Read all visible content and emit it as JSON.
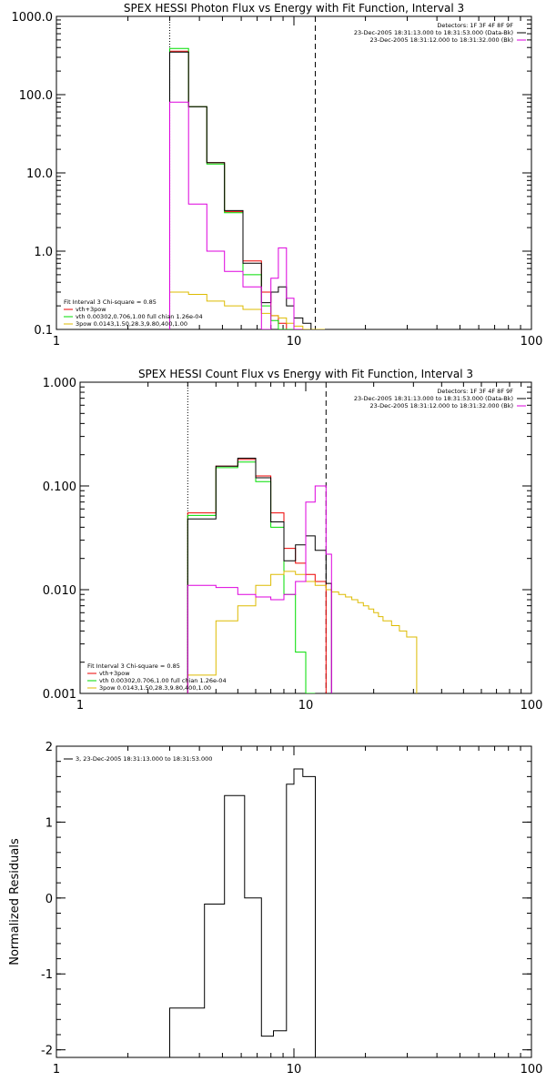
{
  "chart_data": [
    {
      "type": "line",
      "title": "SPEX HESSI Photon Flux vs Energy with Fit Function, Interval 3",
      "xlabel": "",
      "ylabel": "",
      "xscale": "log",
      "yscale": "log",
      "xlim": [
        1,
        100
      ],
      "ylim": [
        0.1,
        1000
      ],
      "x_ticks": [
        {
          "v": 1,
          "label": "1"
        },
        {
          "v": 10,
          "label": "10"
        },
        {
          "v": 100,
          "label": "100"
        }
      ],
      "y_ticks": [
        {
          "v": 0.1,
          "label": "0.1"
        },
        {
          "v": 1,
          "label": "1.0"
        },
        {
          "v": 10,
          "label": "10.0"
        },
        {
          "v": 100,
          "label": "100.0"
        },
        {
          "v": 1000,
          "label": "1000.0"
        }
      ],
      "vlines": [
        {
          "x": 3.0,
          "style": "dotted"
        },
        {
          "x": 12.3,
          "style": "dashed"
        }
      ],
      "legend_topright": [
        {
          "text": "Detectors: 1F 3F 4F 8F 9F",
          "color": ""
        },
        {
          "text": "23-Dec-2005 18:31:13.000 to 18:31:53.000 (Data-Bk)",
          "color": "#000000"
        },
        {
          "text": "23-Dec-2005 18:31:12.000 to 18:31:32.000 (Bk)",
          "color": "#dd00dd"
        }
      ],
      "legend_bottomleft": [
        {
          "text": "Fit Interval 3   Chi-square = 0.85",
          "color": ""
        },
        {
          "text": "vth+3pow",
          "color": "#ee0000"
        },
        {
          "text": "vth 0.00302,0.706,1.00  full chian 1.26e-04",
          "color": "#00dd00"
        },
        {
          "text": "3pow 0.0143,1.50,28.3,9.80,400,1.00",
          "color": "#ddbb00"
        }
      ],
      "edges": [
        3.0,
        3.6,
        4.3,
        5.1,
        6.1,
        7.3,
        8.0,
        8.6,
        9.3,
        10.0,
        10.9,
        11.8,
        12.6,
        13.5
      ],
      "series": [
        {
          "name": "vth+3pow",
          "color": "#ee0000",
          "values": [
            360,
            70,
            13.5,
            3.2,
            0.75,
            0.3,
            0.15,
            0.12,
            0.1,
            0.1
          ]
        },
        {
          "name": "vth",
          "color": "#00dd00",
          "values": [
            390,
            70,
            13,
            3.1,
            0.5,
            0.2,
            0.13,
            0.1,
            0.1
          ]
        },
        {
          "name": "3pow",
          "color": "#ddbb00",
          "values": [
            0.3,
            0.28,
            0.23,
            0.2,
            0.18,
            0.16,
            0.15,
            0.14,
            0.12,
            0.11,
            0.1,
            0.1,
            0.1
          ]
        },
        {
          "name": "Data-Bk",
          "color": "#000000",
          "values": [
            350,
            70,
            13.5,
            3.3,
            0.7,
            0.22,
            0.3,
            0.35,
            0.2,
            0.14,
            0.12
          ]
        },
        {
          "name": "Bk",
          "color": "#dd00dd",
          "values": [
            80,
            4,
            1.0,
            0.55,
            0.35,
            0.1,
            0.45,
            1.1,
            0.25,
            0.1
          ]
        }
      ]
    },
    {
      "type": "line",
      "title": "SPEX HESSI Count Flux vs Energy with Fit Function, Interval 3",
      "xlabel": "",
      "ylabel": "",
      "xscale": "log",
      "yscale": "log",
      "xlim": [
        1,
        100
      ],
      "ylim": [
        0.001,
        1
      ],
      "x_ticks": [
        {
          "v": 1,
          "label": "1"
        },
        {
          "v": 10,
          "label": "10"
        },
        {
          "v": 100,
          "label": "100"
        }
      ],
      "y_ticks": [
        {
          "v": 0.001,
          "label": "0.001"
        },
        {
          "v": 0.01,
          "label": "0.010"
        },
        {
          "v": 0.1,
          "label": "0.100"
        },
        {
          "v": 1,
          "label": "1.000"
        }
      ],
      "vlines": [
        {
          "x": 3.0,
          "style": "dotted"
        },
        {
          "x": 12.3,
          "style": "dashed"
        }
      ],
      "legend_topright": [
        {
          "text": "Detectors: 1F 3F 4F 8F 9F",
          "color": ""
        },
        {
          "text": "23-Dec-2005 18:31:13.000 to 18:31:53.000 (Data-Bk)",
          "color": "#000000"
        },
        {
          "text": "23-Dec-2005 18:31:12.000 to 18:31:32.000 (Bk)",
          "color": "#dd00dd"
        }
      ],
      "legend_bottomleft": [
        {
          "text": "Fit Interval 3   Chi-square = 0.85",
          "color": ""
        },
        {
          "text": "vth+3pow",
          "color": "#ee0000"
        },
        {
          "text": "vth 0.00302,0.706,1.00  full chian 1.26e-04",
          "color": "#00dd00"
        },
        {
          "text": "3pow 0.0143,1.50,28.3,9.80,400,1.00",
          "color": "#ddbb00"
        }
      ],
      "edges": [
        3.0,
        4.0,
        5.0,
        6.0,
        7.0,
        8.0,
        9.0,
        10.0,
        11.0,
        12.3,
        13.0,
        14.0,
        15.0,
        16.0,
        17.0,
        18.0,
        19.0,
        20.0,
        21.0,
        22.0,
        24.0,
        26.0,
        28.0,
        31.0
      ],
      "series": [
        {
          "name": "vth+3pow",
          "color": "#ee0000",
          "values": [
            0.055,
            0.155,
            0.18,
            0.125,
            0.055,
            0.025,
            0.018,
            0.014,
            0.012
          ]
        },
        {
          "name": "vth",
          "color": "#00dd00",
          "values": [
            0.052,
            0.15,
            0.17,
            0.11,
            0.04,
            0.009,
            0.0025,
            0.001
          ]
        },
        {
          "name": "3pow",
          "color": "#ddbb00",
          "values": [
            0.0015,
            0.005,
            0.007,
            0.011,
            0.014,
            0.015,
            0.014,
            0.012,
            0.011,
            0.01,
            0.0095,
            0.009,
            0.0085,
            0.008,
            0.0075,
            0.007,
            0.0065,
            0.006,
            0.0055,
            0.005,
            0.0045,
            0.004,
            0.0035
          ]
        },
        {
          "name": "Data-Bk",
          "color": "#000000",
          "values": [
            0.048,
            0.155,
            0.185,
            0.12,
            0.045,
            0.019,
            0.027,
            0.033,
            0.024,
            0.0115
          ]
        },
        {
          "name": "Bk",
          "color": "#dd00dd",
          "values": [
            0.011,
            0.0105,
            0.009,
            0.0085,
            0.008,
            0.009,
            0.012,
            0.07,
            0.1,
            0.022
          ]
        }
      ]
    },
    {
      "type": "line",
      "title": "",
      "xlabel": "",
      "ylabel": "Normalized Residuals",
      "xscale": "log",
      "yscale": "linear",
      "xlim": [
        1,
        100
      ],
      "ylim": [
        -2.1,
        2.0
      ],
      "x_ticks": [
        {
          "v": 1,
          "label": "1"
        },
        {
          "v": 10,
          "label": "10"
        },
        {
          "v": 100,
          "label": "100"
        }
      ],
      "y_ticks": [
        {
          "v": -2,
          "label": "-2"
        },
        {
          "v": -1,
          "label": "-1"
        },
        {
          "v": 0,
          "label": "0"
        },
        {
          "v": 1,
          "label": "1"
        },
        {
          "v": 2,
          "label": "2"
        }
      ],
      "legend_topleft": [
        {
          "text": "3, 23-Dec-2005 18:31:13.000 to 18:31:53.000",
          "color": "#000000"
        }
      ],
      "edges": [
        3.0,
        4.2,
        5.1,
        6.2,
        7.3,
        8.2,
        9.3,
        10.0,
        10.9,
        11.8,
        12.3
      ],
      "series": [
        {
          "name": "3, 23-Dec-2005 18:31:13.000 to 18:31:53.000",
          "color": "#000000",
          "values": [
            -1.45,
            -0.08,
            1.35,
            0.0,
            -1.82,
            -1.75,
            1.5,
            1.7,
            1.6,
            1.6
          ]
        }
      ]
    }
  ]
}
